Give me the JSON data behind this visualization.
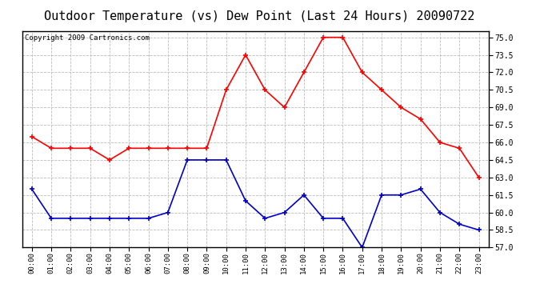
{
  "title": "Outdoor Temperature (vs) Dew Point (Last 24 Hours) 20090722",
  "copyright": "Copyright 2009 Cartronics.com",
  "x_labels": [
    "00:00",
    "01:00",
    "02:00",
    "03:00",
    "04:00",
    "05:00",
    "06:00",
    "07:00",
    "08:00",
    "09:00",
    "10:00",
    "11:00",
    "12:00",
    "13:00",
    "14:00",
    "15:00",
    "16:00",
    "17:00",
    "18:00",
    "19:00",
    "20:00",
    "21:00",
    "22:00",
    "23:00"
  ],
  "temp_red": [
    66.5,
    65.5,
    65.5,
    65.5,
    64.5,
    65.5,
    65.5,
    65.5,
    65.5,
    65.5,
    70.5,
    73.5,
    70.5,
    69.0,
    72.0,
    75.0,
    75.0,
    72.0,
    70.5,
    69.0,
    68.0,
    66.0,
    65.5,
    63.0
  ],
  "dew_blue": [
    62.0,
    59.5,
    59.5,
    59.5,
    59.5,
    59.5,
    59.5,
    60.0,
    64.5,
    64.5,
    64.5,
    61.0,
    59.5,
    60.0,
    61.5,
    59.5,
    59.5,
    57.0,
    61.5,
    61.5,
    62.0,
    60.0,
    59.0,
    58.5
  ],
  "ylim": [
    57.0,
    75.5
  ],
  "yticks": [
    57.0,
    58.5,
    60.0,
    61.5,
    63.0,
    64.5,
    66.0,
    67.5,
    69.0,
    70.5,
    72.0,
    73.5,
    75.0
  ],
  "red_color": "#ff0000",
  "blue_color": "#0000cc",
  "bg_color": "#ffffff",
  "grid_color": "#bbbbbb",
  "title_fontsize": 11,
  "copyright_fontsize": 6.5
}
